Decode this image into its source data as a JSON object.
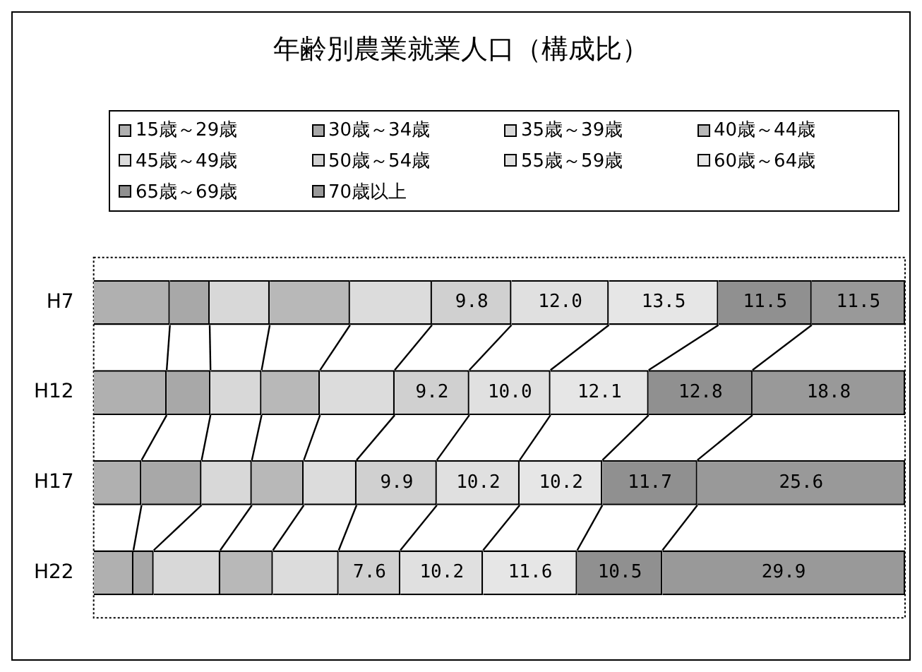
{
  "chart_data": {
    "type": "bar",
    "title": "年齢別農業就業人口（構成比）",
    "orientation": "horizontal",
    "stacked": true,
    "legend": "top",
    "tick_labels": "y",
    "xlim": [
      0,
      100
    ],
    "categories": [
      "H7",
      "H12",
      "H17",
      "H22"
    ],
    "series": [
      {
        "name": "15歳～29歳",
        "color": "#b0b0b0",
        "values": [
          9.4,
          9.0,
          5.9,
          4.9
        ]
      },
      {
        "name": "30歳～34歳",
        "color": "#a8a8a8",
        "values": [
          4.9,
          5.4,
          7.4,
          2.5
        ]
      },
      {
        "name": "35歳～39歳",
        "color": "#d8d8d8",
        "values": [
          7.4,
          6.3,
          6.2,
          8.2
        ]
      },
      {
        "name": "40歳～44歳",
        "color": "#b8b8b8",
        "values": [
          9.9,
          7.2,
          6.4,
          6.5
        ]
      },
      {
        "name": "45歳～49歳",
        "color": "#dcdcdc",
        "values": [
          10.1,
          9.2,
          6.5,
          8.1
        ]
      },
      {
        "name": "50歳～54歳",
        "color": "#d0d0d0",
        "values": [
          9.8,
          9.2,
          9.9,
          7.6
        ],
        "value_labels": [
          "9.8",
          "9.2",
          "9.9",
          "7.6"
        ]
      },
      {
        "name": "55歳～59歳",
        "color": "#e0e0e0",
        "values": [
          12.0,
          10.0,
          10.2,
          10.2
        ],
        "value_labels": [
          "12.0",
          "10.0",
          "10.2",
          "10.2"
        ]
      },
      {
        "name": "60歳～64歳",
        "color": "#e6e6e6",
        "values": [
          13.5,
          12.1,
          10.2,
          11.6
        ],
        "value_labels": [
          "13.5",
          "12.1",
          "10.2",
          "11.6"
        ]
      },
      {
        "name": "65歳～69歳",
        "color": "#909090",
        "values": [
          11.5,
          12.8,
          11.7,
          10.5
        ],
        "value_labels": [
          "11.5",
          "12.8",
          "11.7",
          "10.5"
        ]
      },
      {
        "name": "70歳以上",
        "color": "#999999",
        "values": [
          11.5,
          18.8,
          25.6,
          29.9
        ],
        "value_labels": [
          "11.5",
          "18.8",
          "25.6",
          "29.9"
        ]
      }
    ]
  }
}
